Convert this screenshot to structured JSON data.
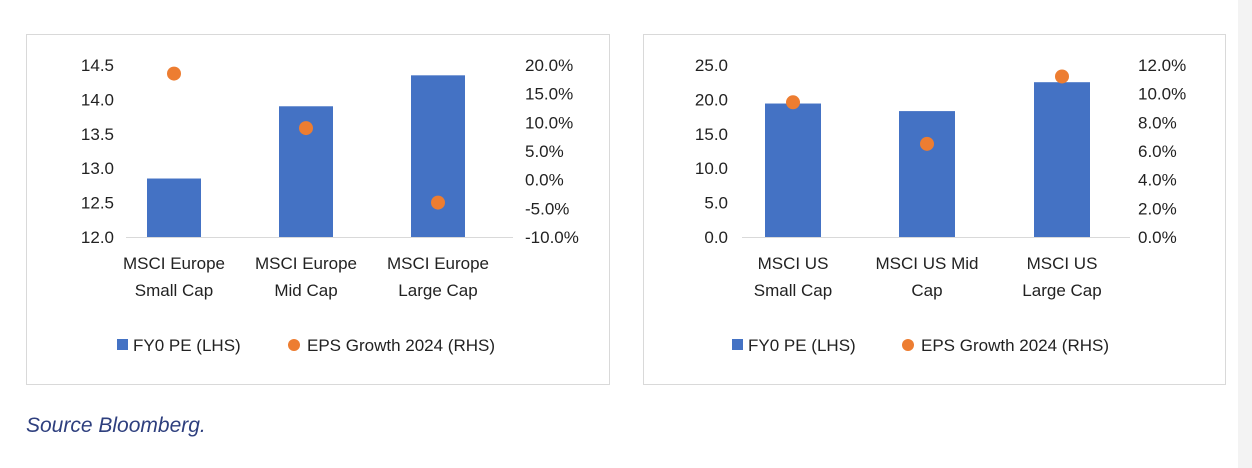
{
  "charts": [
    {
      "chart_data": {
        "type": "bar",
        "categories": [
          [
            "MSCI Europe",
            "Small Cap"
          ],
          [
            "MSCI Europe",
            "Mid Cap"
          ],
          [
            "MSCI Europe",
            "Large Cap"
          ]
        ],
        "series": [
          {
            "name": "FY0 PE (LHS)",
            "type": "bar",
            "axis": "left",
            "values": [
              12.85,
              13.9,
              14.35
            ],
            "color": "#4472C4"
          },
          {
            "name": "EPS Growth 2024 (RHS)",
            "type": "scatter",
            "axis": "right",
            "values": [
              0.185,
              0.09,
              -0.04
            ],
            "color": "#ED7D31"
          }
        ],
        "y_left": {
          "min": 12.0,
          "max": 14.5,
          "ticks": [
            "12.0",
            "12.5",
            "13.0",
            "13.5",
            "14.0",
            "14.5"
          ]
        },
        "y_right": {
          "min": -0.1,
          "max": 0.2,
          "ticks": [
            "-10.0%",
            "-5.0%",
            "0.0%",
            "5.0%",
            "10.0%",
            "15.0%",
            "20.0%"
          ]
        },
        "grid": false,
        "legend_position": "bottom"
      }
    },
    {
      "chart_data": {
        "type": "bar",
        "categories": [
          [
            "MSCI US",
            "Small Cap"
          ],
          [
            "MSCI US Mid",
            "Cap"
          ],
          [
            "MSCI US",
            "Large Cap"
          ]
        ],
        "series": [
          {
            "name": "FY0 PE (LHS)",
            "type": "bar",
            "axis": "left",
            "values": [
              19.4,
              18.3,
              22.5
            ],
            "color": "#4472C4"
          },
          {
            "name": "EPS Growth 2024 (RHS)",
            "type": "scatter",
            "axis": "right",
            "values": [
              0.094,
              0.065,
              0.112
            ],
            "color": "#ED7D31"
          }
        ],
        "y_left": {
          "min": 0.0,
          "max": 25.0,
          "ticks": [
            "0.0",
            "5.0",
            "10.0",
            "15.0",
            "20.0",
            "25.0"
          ]
        },
        "y_right": {
          "min": 0.0,
          "max": 0.12,
          "ticks": [
            "0.0%",
            "2.0%",
            "4.0%",
            "6.0%",
            "8.0%",
            "10.0%",
            "12.0%"
          ]
        },
        "grid": false,
        "legend_position": "bottom"
      }
    }
  ],
  "source": "Source Bloomberg."
}
